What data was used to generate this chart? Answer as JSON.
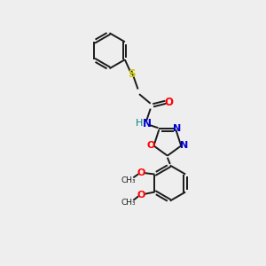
{
  "background_color": "#eeeeee",
  "bond_color": "#1a1a1a",
  "S_color": "#cccc00",
  "O_color": "#ff0000",
  "N_color": "#0000cc",
  "NH_color": "#008080",
  "figsize": [
    3.0,
    3.0
  ],
  "dpi": 100,
  "xlim": [
    0,
    10
  ],
  "ylim": [
    0,
    10
  ]
}
